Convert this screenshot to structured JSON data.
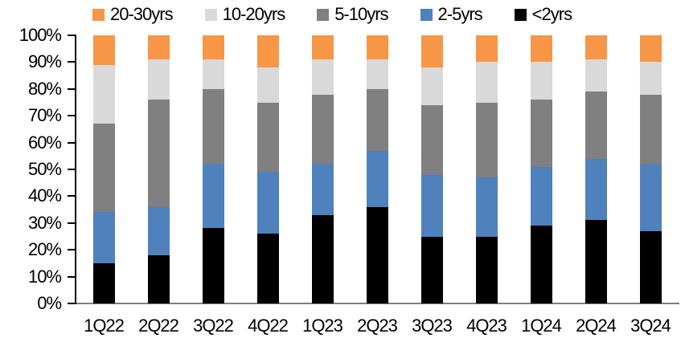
{
  "chart_data": {
    "type": "bar",
    "stacked": true,
    "unit": "%",
    "categories": [
      "1Q22",
      "2Q22",
      "3Q22",
      "4Q22",
      "1Q23",
      "2Q23",
      "3Q23",
      "4Q23",
      "1Q24",
      "2Q24",
      "3Q24"
    ],
    "series": [
      {
        "name": "<2yrs",
        "color": "#000000",
        "values": [
          15,
          18,
          28,
          26,
          33,
          36,
          25,
          25,
          29,
          31,
          27
        ]
      },
      {
        "name": "2-5yrs",
        "color": "#4F81BD",
        "values": [
          19,
          18,
          24,
          23,
          19,
          21,
          23,
          22,
          22,
          23,
          25
        ]
      },
      {
        "name": "5-10yrs",
        "color": "#808080",
        "values": [
          33,
          40,
          28,
          26,
          26,
          23,
          26,
          28,
          25,
          25,
          26
        ]
      },
      {
        "name": "10-20yrs",
        "color": "#D9D9D9",
        "values": [
          22,
          15,
          11,
          13,
          13,
          11,
          14,
          15,
          14,
          12,
          12
        ]
      },
      {
        "name": "20-30yrs",
        "color": "#F79646",
        "values": [
          11,
          9,
          9,
          12,
          9,
          9,
          12,
          10,
          10,
          9,
          10
        ]
      }
    ],
    "stack_order": "bottom-to-top",
    "legend": {
      "position": "top",
      "order": [
        "20-30yrs",
        "10-20yrs",
        "5-10yrs",
        "2-5yrs",
        "<2yrs"
      ]
    },
    "y_axis": {
      "min": 0,
      "max": 100,
      "step": 10,
      "tick_labels": [
        "0%",
        "10%",
        "20%",
        "30%",
        "40%",
        "50%",
        "60%",
        "70%",
        "80%",
        "90%",
        "100%"
      ]
    },
    "x_axis": {
      "tick_labels": [
        "1Q22",
        "2Q22",
        "3Q22",
        "4Q22",
        "1Q23",
        "2Q23",
        "3Q23",
        "4Q23",
        "1Q24",
        "2Q24",
        "3Q24"
      ]
    },
    "grid": false,
    "axis_colors": {
      "y_axis_line": "#000000",
      "x_axis_line": "#808080"
    },
    "background": "#FFFFFF"
  }
}
